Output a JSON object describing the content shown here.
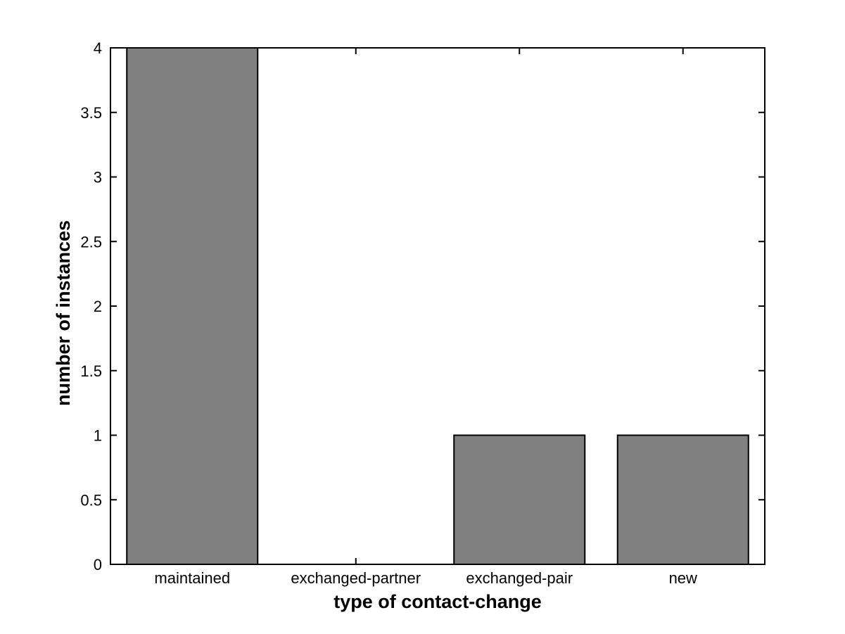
{
  "figure": {
    "background_color": "#ffffff"
  },
  "chart_data": {
    "type": "bar",
    "title": "",
    "categories": [
      "maintained",
      "exchanged-partner",
      "exchanged-pair",
      "new"
    ],
    "values": [
      4,
      0,
      1,
      1
    ],
    "xlabel": "type of contact-change",
    "ylabel": "number of instances",
    "ylim": [
      0,
      4
    ],
    "yticks": [
      0,
      0.5,
      1,
      1.5,
      2,
      2.5,
      3,
      3.5,
      4
    ],
    "ytick_labels": [
      "0",
      "0.5",
      "1",
      "1.5",
      "2",
      "2.5",
      "3",
      "3.5",
      "4"
    ],
    "bar_width_fraction": 0.8,
    "bar_color": "#808080",
    "bar_edge_color": "#000000",
    "axis_color": "#000000",
    "grid": false,
    "legend_position": "none",
    "box": true,
    "tick_direction": "in"
  }
}
